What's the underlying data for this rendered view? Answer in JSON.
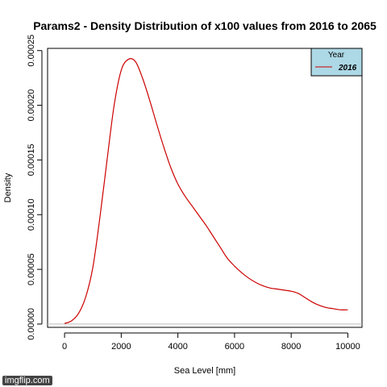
{
  "chart_data": {
    "type": "line",
    "title": "Params2 - Density Distribution of x100 values from 2016 to 2065",
    "xlabel": "Sea Level [mm]",
    "ylabel": "Density",
    "xlim": [
      -600,
      10500
    ],
    "ylim": [
      -3e-06,
      0.000252
    ],
    "xticks": [
      0,
      2000,
      4000,
      6000,
      8000,
      10000
    ],
    "xtick_labels": [
      "0",
      "2000",
      "4000",
      "6000",
      "8000",
      "10000"
    ],
    "yticks": [
      0.0,
      5e-05,
      0.0001,
      0.00015,
      0.0002,
      0.00025
    ],
    "ytick_labels": [
      "0.00000",
      "0.00005",
      "0.00010",
      "0.00015",
      "0.00020",
      "0.00025"
    ],
    "grid": false,
    "baseline": 0,
    "legend": {
      "title": "Year",
      "placement": "top-right",
      "background": "#add8e6",
      "entries": [
        "2016"
      ]
    },
    "series": [
      {
        "name": "2016",
        "color": "#cc0000",
        "x": [
          0,
          250,
          500,
          750,
          1000,
          1250,
          1500,
          1750,
          2000,
          2250,
          2500,
          2750,
          3000,
          3250,
          3500,
          3750,
          4000,
          4250,
          4500,
          4750,
          5000,
          5250,
          5500,
          5750,
          6000,
          6250,
          6500,
          6750,
          7000,
          7250,
          7500,
          7750,
          8000,
          8250,
          8500,
          8750,
          9000,
          9250,
          9500,
          9750,
          10000
        ],
        "values": [
          5e-07,
          3e-06,
          1e-05,
          2.5e-05,
          5.2e-05,
          9.8e-05,
          0.00015,
          0.0002,
          0.000232,
          0.000242,
          0.00024,
          0.000225,
          0.000205,
          0.000183,
          0.000162,
          0.000143,
          0.000128,
          0.000117,
          0.000108,
          9.9e-05,
          9e-05,
          8e-05,
          7e-05,
          6e-05,
          5.3e-05,
          4.7e-05,
          4.2e-05,
          3.8e-05,
          3.5e-05,
          3.3e-05,
          3.2e-05,
          3.1e-05,
          3e-05,
          2.8e-05,
          2.4e-05,
          2e-05,
          1.7e-05,
          1.5e-05,
          1.4e-05,
          1.3e-05,
          1.3e-05
        ]
      }
    ]
  },
  "watermark": "imgflip.com"
}
